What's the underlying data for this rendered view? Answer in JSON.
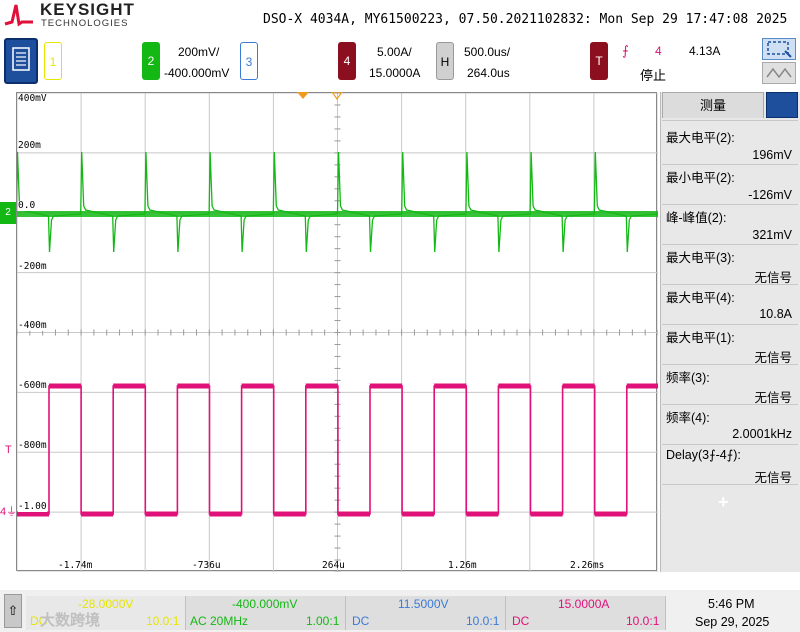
{
  "header": {
    "brand": "KEYSIGHT",
    "brand_sub": "TECHNOLOGIES",
    "instrument_info": "DSO-X 4034A, MY61500223, 07.50.2021102832: Mon Sep 29 17:47:08 2025"
  },
  "channels": {
    "ch1": {
      "number": "1"
    },
    "ch2": {
      "number": "2",
      "scale": "200mV/",
      "offset": "-400.000mV"
    },
    "ch3": {
      "number": "3"
    },
    "ch4": {
      "number": "4",
      "scale": "5.00A/",
      "offset": "15.0000A"
    },
    "horizontal": {
      "label": "H",
      "scale": "500.0us/",
      "delay": "264.0us"
    },
    "trigger": {
      "label": "T",
      "slope": "⨍",
      "source": "4",
      "level": "4.13A",
      "status": "停止"
    }
  },
  "colors": {
    "ch1": "#e6e600",
    "ch2": "#14b814",
    "ch3": "#3a7bd5",
    "ch4": "#e0127a",
    "trigger": "#8b0f1e",
    "grid": "#c8c8c8"
  },
  "scope": {
    "y_labels": [
      "400mV",
      "200m",
      "0.0",
      "-200m",
      "-400m",
      "-600m",
      "-800m",
      "-1.00"
    ],
    "x_labels": [
      "-1.74m",
      "-736u",
      "264u",
      "1.26m",
      "2.26ms"
    ]
  },
  "measurements": {
    "tab_label": "测量",
    "items": [
      {
        "label": "最大电平(2):",
        "value": "196mV"
      },
      {
        "label": "最小电平(2):",
        "value": "-126mV"
      },
      {
        "label": "峰-峰值(2):",
        "value": "321mV"
      },
      {
        "label": "最大电平(3):",
        "value": "无信号"
      },
      {
        "label": "最大电平(4):",
        "value": "10.8A"
      },
      {
        "label": "最大电平(1):",
        "value": "无信号"
      },
      {
        "label": "频率(3):",
        "value": "无信号"
      },
      {
        "label": "频率(4):",
        "value": "2.0001kHz"
      },
      {
        "label": "Delay(3⨍-4⨍):",
        "value": "无信号"
      }
    ],
    "add_label": "+"
  },
  "bottom": {
    "ch1_offset": "-28.0000V",
    "ch1_coupling": "DC",
    "ch1_probe": "10.0:1",
    "ch2_offset": "-400.000mV",
    "ch2_coupling": "AC 20MHz",
    "ch2_probe": "1.00:1",
    "ch3_offset": "11.5000V",
    "ch3_coupling": "DC",
    "ch3_probe": "10.0:1",
    "ch4_offset": "15.0000A",
    "ch4_coupling": "DC",
    "ch4_probe": "10.0:1",
    "watermark": "大数跨境",
    "time": "5:46 PM",
    "date": "Sep 29, 2025"
  }
}
